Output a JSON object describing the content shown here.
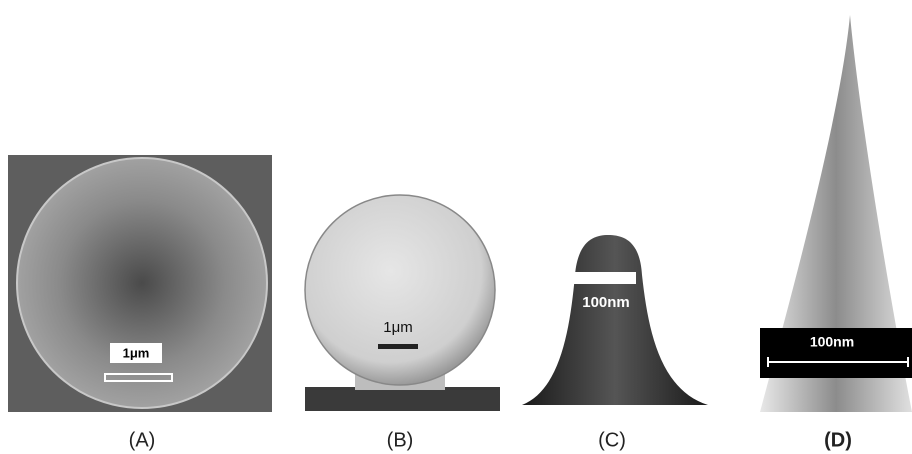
{
  "panels": [
    {
      "caption": "(A)",
      "scale_label": "1μm"
    },
    {
      "caption": "(B)",
      "scale_label": "1μm"
    },
    {
      "caption": "(C)",
      "scale_label": "100nm"
    },
    {
      "caption": "(D)",
      "scale_label": "100nm"
    }
  ]
}
